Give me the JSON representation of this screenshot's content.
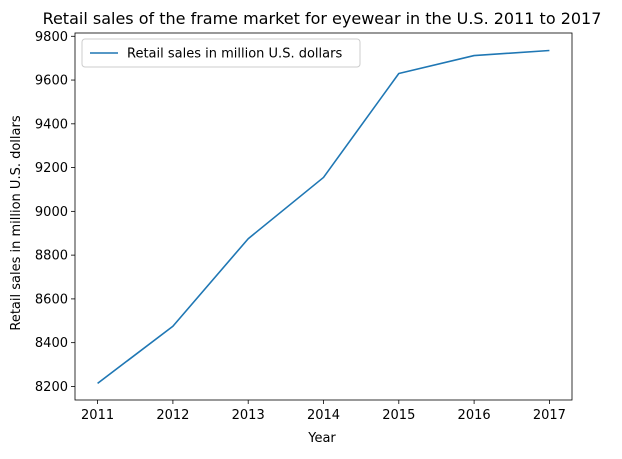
{
  "chart_data": {
    "type": "line",
    "title": "Retail sales of the frame market for eyewear in the U.S. 2011 to 2017",
    "xlabel": "Year",
    "ylabel": "Retail sales in million U.S. dollars",
    "x": [
      2011,
      2012,
      2013,
      2014,
      2015,
      2016,
      2017
    ],
    "series": [
      {
        "name": "Retail sales in million U.S. dollars",
        "values": [
          8214,
          8475,
          8875,
          9155,
          9630,
          9712,
          9735
        ],
        "color": "#1f77b4"
      }
    ],
    "xlim": [
      2010.7,
      2017.3
    ],
    "ylim": [
      8138,
      9815
    ],
    "yticks": [
      8200,
      8400,
      8600,
      8800,
      9000,
      9200,
      9400,
      9600,
      9800
    ],
    "grid": false,
    "legend_position": "upper-left"
  }
}
